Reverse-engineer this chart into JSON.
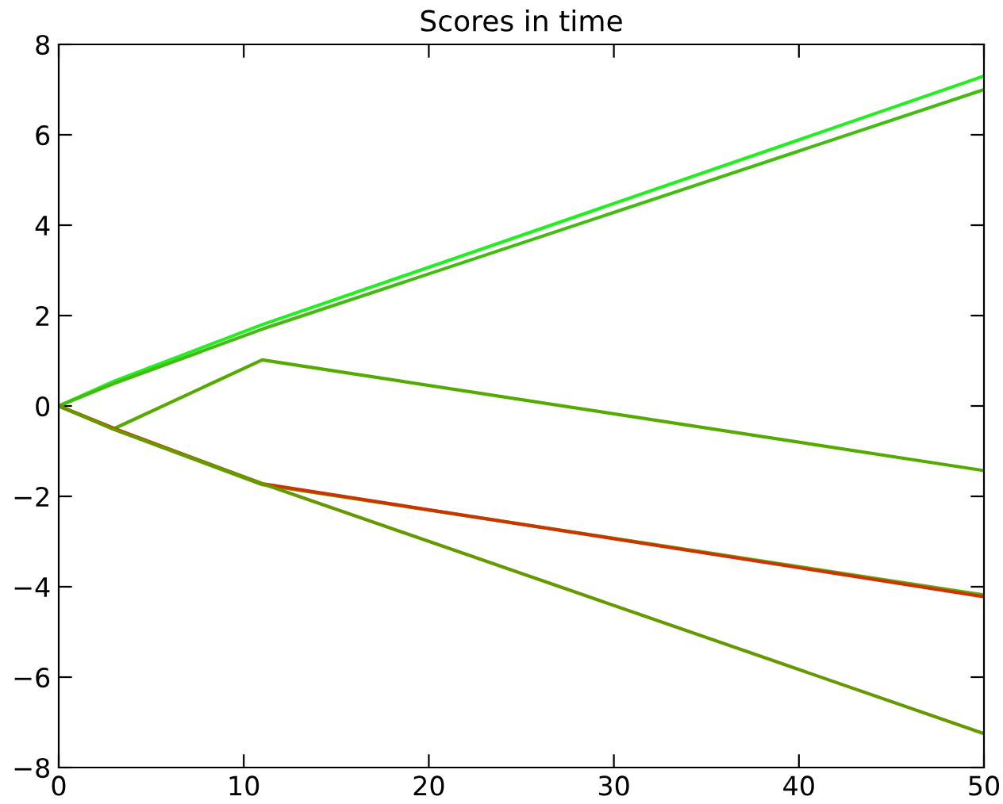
{
  "chart_data": {
    "type": "line",
    "title": "Scores in time",
    "x": [
      0,
      3,
      11,
      50
    ],
    "series": [
      {
        "color": "#22ee22",
        "values": [
          0,
          0.55,
          1.8,
          7.3
        ]
      },
      {
        "color": "#44bb11",
        "values": [
          0,
          0.5,
          1.7,
          7.0
        ]
      },
      {
        "color": "#55aa00",
        "values": [
          0,
          -0.5,
          1.02,
          -1.43
        ]
      },
      {
        "color": "#66aa00",
        "values": [
          0,
          -0.52,
          -1.74,
          -4.18
        ]
      },
      {
        "color": "#cc3300",
        "values": [
          0,
          -0.5,
          -1.72,
          -4.22
        ]
      },
      {
        "color": "#669900",
        "values": [
          0,
          -0.52,
          -1.72,
          -7.25
        ]
      }
    ],
    "xlim": [
      0,
      50
    ],
    "ylim": [
      -8,
      8
    ],
    "xticks": [
      0,
      10,
      20,
      30,
      40,
      50
    ],
    "yticks": [
      -8,
      -6,
      -4,
      -2,
      0,
      2,
      4,
      6,
      8
    ],
    "grid": false,
    "legend": false,
    "marker": "none",
    "line_style": "solid"
  }
}
